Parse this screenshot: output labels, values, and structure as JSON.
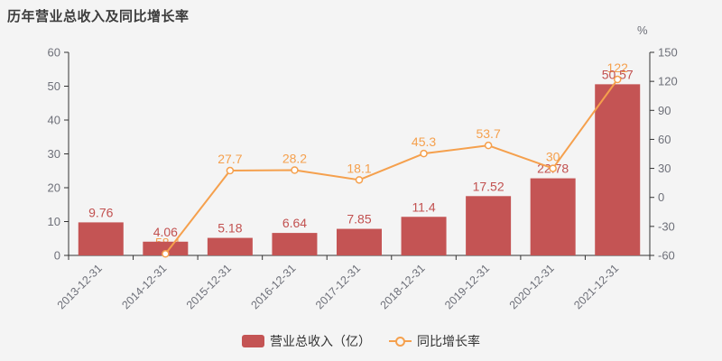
{
  "title": "历年营业总收入及同比增长率",
  "right_axis_unit": "%",
  "legend": {
    "bar_label": "营业总收入（亿）",
    "line_label": "同比增长率"
  },
  "colors": {
    "background": "#f4f4f4",
    "bar": "#c45454",
    "bar_label": "#c25150",
    "line": "#f5a04d",
    "marker_fill": "#ffffff",
    "axis": "#333333",
    "tick_label": "#6e7079",
    "title": "#3d3d3d",
    "legend_text": "#333333"
  },
  "chart_data": {
    "type": "bar+line",
    "title": "历年营业总收入及同比增长率",
    "categories": [
      "2013-12-31",
      "2014-12-31",
      "2015-12-31",
      "2016-12-31",
      "2017-12-31",
      "2018-12-31",
      "2019-12-31",
      "2020-12-31",
      "2021-12-31"
    ],
    "series": [
      {
        "name": "营业总收入（亿）",
        "type": "bar",
        "axis": "left",
        "values": [
          9.76,
          4.06,
          5.18,
          6.64,
          7.85,
          11.4,
          17.52,
          22.78,
          50.57
        ],
        "labels": [
          "9.76",
          "4.06",
          "5.18",
          "6.64",
          "7.85",
          "11.4",
          "17.52",
          "22.78",
          "50.57"
        ]
      },
      {
        "name": "同比增长率",
        "type": "line",
        "axis": "right",
        "values": [
          null,
          -58.4,
          27.7,
          28.2,
          18.1,
          45.3,
          53.7,
          30,
          122
        ],
        "labels": [
          null,
          "-58.4",
          "27.7",
          "28.2",
          "18.1",
          "45.3",
          "53.7",
          "30",
          "122"
        ]
      }
    ],
    "left_axis": {
      "min": 0,
      "max": 60,
      "step": 10
    },
    "right_axis": {
      "min": -60,
      "max": 150,
      "step": 30,
      "unit": "%"
    },
    "grid": false,
    "legend_position": "bottom",
    "x_label_rotation": 45
  }
}
